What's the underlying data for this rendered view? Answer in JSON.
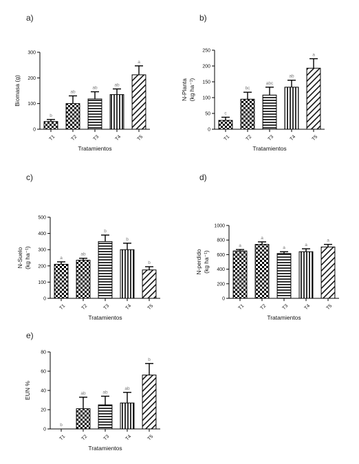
{
  "chart_data": [
    {
      "type": "bar",
      "panel": "a)",
      "categories": [
        "T1",
        "T2",
        "T3",
        "T4",
        "T5"
      ],
      "values": [
        30,
        100,
        118,
        135,
        212
      ],
      "errors": [
        8,
        30,
        28,
        22,
        35
      ],
      "letters": [
        "b",
        "ab",
        "ab",
        "ab",
        "a"
      ],
      "ylabel": [
        "Biomasa  (g)"
      ],
      "xlabel": "Tratamientos",
      "ylim": [
        0,
        300
      ],
      "yticks": [
        "0",
        "100",
        "200",
        "300"
      ],
      "patterns": [
        "checker",
        "checker",
        "hlines",
        "vlines",
        "diag"
      ]
    },
    {
      "type": "bar",
      "panel": "b)",
      "categories": [
        "T1",
        "T2",
        "T3",
        "T4",
        "T5"
      ],
      "values": [
        28,
        95,
        108,
        133,
        193
      ],
      "errors": [
        10,
        22,
        25,
        22,
        30
      ],
      "letters": [
        "c",
        "bc",
        "abc",
        "ab",
        "a"
      ],
      "ylabel": [
        "N-Planta",
        "(kg ha⁻¹)"
      ],
      "xlabel": "Tratamientos",
      "ylim": [
        0,
        250
      ],
      "yticks": [
        "0",
        "50",
        "100",
        "150",
        "200",
        "250"
      ],
      "patterns": [
        "checker",
        "checker",
        "hlines",
        "vlines",
        "diag"
      ]
    },
    {
      "type": "bar",
      "panel": "c)",
      "categories": [
        "T1",
        "T2",
        "T3",
        "T4",
        "T5"
      ],
      "values": [
        210,
        235,
        350,
        300,
        175
      ],
      "errors": [
        15,
        12,
        40,
        40,
        20
      ],
      "letters": [
        "a",
        "ab",
        "b",
        "b",
        "b"
      ],
      "ylabel": [
        "N-Suelo",
        "(kg ha⁻¹)"
      ],
      "xlabel": "Tratamientos",
      "ylim": [
        0,
        500
      ],
      "yticks": [
        "0",
        "100",
        "200",
        "300",
        "400",
        "500"
      ],
      "patterns": [
        "checker",
        "checker",
        "hlines",
        "vlines",
        "diag"
      ]
    },
    {
      "type": "bar",
      "panel": "d)",
      "categories": [
        "T1",
        "T2",
        "T3",
        "T4",
        "T5"
      ],
      "values": [
        650,
        740,
        615,
        640,
        705
      ],
      "errors": [
        20,
        35,
        25,
        40,
        35
      ],
      "letters": [
        "a",
        "a",
        "a",
        "a",
        "a"
      ],
      "ylabel": [
        "N-perdido",
        "(kg ha⁻¹)"
      ],
      "xlabel": "Tratamientos",
      "ylim": [
        0,
        1000
      ],
      "yticks": [
        "0",
        "200",
        "400",
        "600",
        "800",
        "1000"
      ],
      "patterns": [
        "checker",
        "checker",
        "hlines",
        "vlines",
        "diag"
      ]
    },
    {
      "type": "bar",
      "panel": "e)",
      "categories": [
        "T1",
        "T2",
        "T3",
        "T4",
        "T5"
      ],
      "values": [
        0,
        21,
        25,
        27,
        56
      ],
      "errors": [
        0,
        12,
        9,
        11,
        12
      ],
      "letters": [
        "b",
        "ab",
        "ab",
        "ab",
        "b"
      ],
      "ylabel": [
        "EUN %"
      ],
      "xlabel": "Tratamientos",
      "ylim": [
        0,
        80
      ],
      "yticks": [
        "0",
        "20",
        "40",
        "60",
        "80"
      ],
      "patterns": [
        "none",
        "checker",
        "hlines",
        "vlines",
        "diag"
      ]
    }
  ]
}
